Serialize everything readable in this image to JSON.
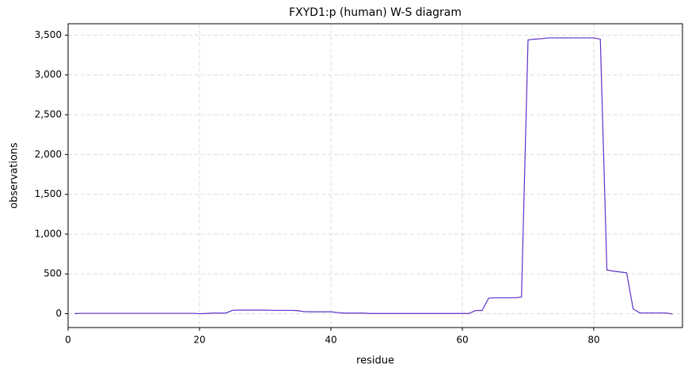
{
  "chart_data": {
    "type": "line",
    "title": "FXYD1:p (human) W-S diagram",
    "xlabel": "residue",
    "ylabel": "observations",
    "x": [
      1,
      2,
      3,
      4,
      5,
      6,
      7,
      8,
      9,
      10,
      11,
      12,
      13,
      14,
      15,
      16,
      17,
      18,
      19,
      20,
      21,
      22,
      23,
      24,
      25,
      26,
      27,
      28,
      29,
      30,
      31,
      32,
      33,
      34,
      35,
      36,
      37,
      38,
      39,
      40,
      41,
      42,
      43,
      44,
      45,
      46,
      47,
      48,
      49,
      50,
      51,
      52,
      53,
      54,
      55,
      56,
      57,
      58,
      59,
      60,
      61,
      62,
      63,
      64,
      65,
      66,
      67,
      68,
      69,
      70,
      71,
      72,
      73,
      74,
      75,
      76,
      77,
      78,
      79,
      80,
      81,
      82,
      83,
      84,
      85,
      86,
      87,
      88,
      89,
      90,
      91,
      92
    ],
    "series": [
      {
        "name": "observations",
        "color": "#5b30c8",
        "values": [
          2,
          5,
          5,
          5,
          5,
          5,
          5,
          5,
          5,
          5,
          5,
          5,
          5,
          5,
          5,
          5,
          5,
          5,
          5,
          0,
          3,
          8,
          8,
          8,
          42,
          45,
          45,
          45,
          45,
          45,
          42,
          42,
          42,
          42,
          38,
          25,
          24,
          24,
          24,
          24,
          15,
          8,
          8,
          8,
          8,
          3,
          3,
          3,
          3,
          3,
          3,
          3,
          3,
          3,
          3,
          3,
          3,
          3,
          3,
          3,
          3,
          40,
          40,
          195,
          200,
          200,
          200,
          200,
          210,
          3440,
          3450,
          3455,
          3465,
          3465,
          3465,
          3465,
          3465,
          3465,
          3465,
          3465,
          3450,
          550,
          535,
          525,
          515,
          60,
          10,
          10,
          10,
          10,
          10,
          -5
        ]
      }
    ],
    "xlim": [
      0,
      93.5
    ],
    "ylim": [
      -173.5,
      3643.5
    ],
    "xticks": [
      0,
      20,
      40,
      60,
      80
    ],
    "yticks": [
      0,
      500,
      {
        "value": 1000,
        "label": "1,000"
      },
      {
        "value": 1500,
        "label": "1,500"
      },
      {
        "value": 2000,
        "label": "2,000"
      },
      {
        "value": 2500,
        "label": "2,500"
      },
      {
        "value": 3000,
        "label": "3,000"
      },
      {
        "value": 3500,
        "label": "3,500"
      }
    ],
    "grid": true
  }
}
